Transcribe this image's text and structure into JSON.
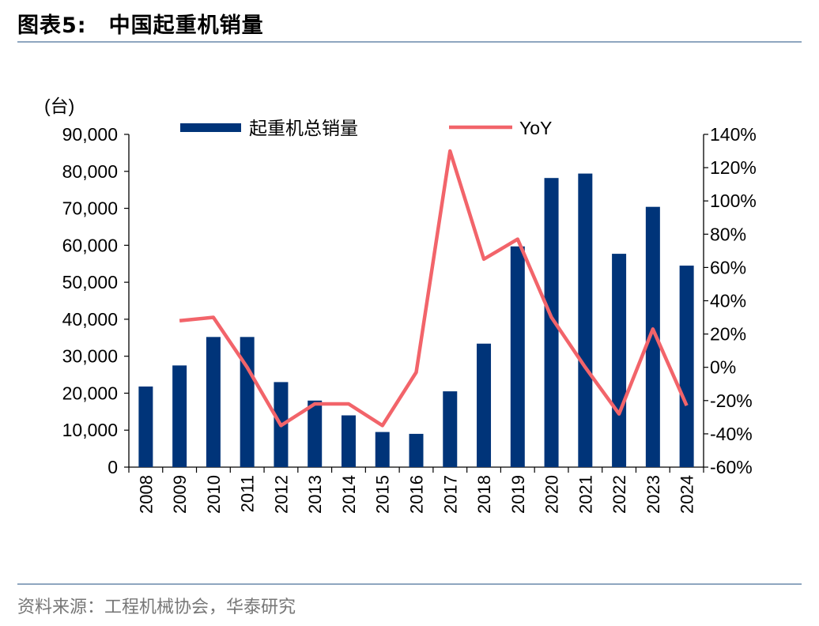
{
  "figure": {
    "label": "图表5:",
    "title": "中国起重机销量",
    "source": "资料来源：工程机械协会，华泰研究"
  },
  "chart_data": {
    "type": "bar",
    "categories": [
      "2008",
      "2009",
      "2010",
      "2011",
      "2012",
      "2013",
      "2014",
      "2015",
      "2016",
      "2017",
      "2018",
      "2019",
      "2020",
      "2021",
      "2022",
      "2023",
      "2024"
    ],
    "series": [
      {
        "name": "起重机总销量",
        "type": "bar",
        "axis": "left",
        "values": [
          21800,
          27500,
          35200,
          35200,
          23000,
          18000,
          14000,
          9500,
          9000,
          20500,
          33400,
          59700,
          78200,
          79400,
          57700,
          70400,
          54500
        ]
      },
      {
        "name": "YoY",
        "type": "line",
        "axis": "right",
        "values": [
          null,
          28,
          30,
          0,
          -35,
          -22,
          -22,
          -35,
          -3,
          130,
          65,
          77,
          30,
          0,
          -28,
          23,
          -23
        ]
      }
    ],
    "left_axis": {
      "unit_label": "(台)",
      "ylim": [
        0,
        90000
      ],
      "ticks": [
        "0",
        "10,000",
        "20,000",
        "30,000",
        "40,000",
        "50,000",
        "60,000",
        "70,000",
        "80,000",
        "90,000"
      ]
    },
    "right_axis": {
      "ylim": [
        -60,
        140
      ],
      "ticks": [
        "-60%",
        "-40%",
        "-20%",
        "0%",
        "20%",
        "40%",
        "60%",
        "80%",
        "100%",
        "120%",
        "140%"
      ]
    },
    "legend": {
      "placement": "top"
    },
    "colors": {
      "bar": "#003479",
      "line": "#f2646a"
    },
    "grid": false
  }
}
